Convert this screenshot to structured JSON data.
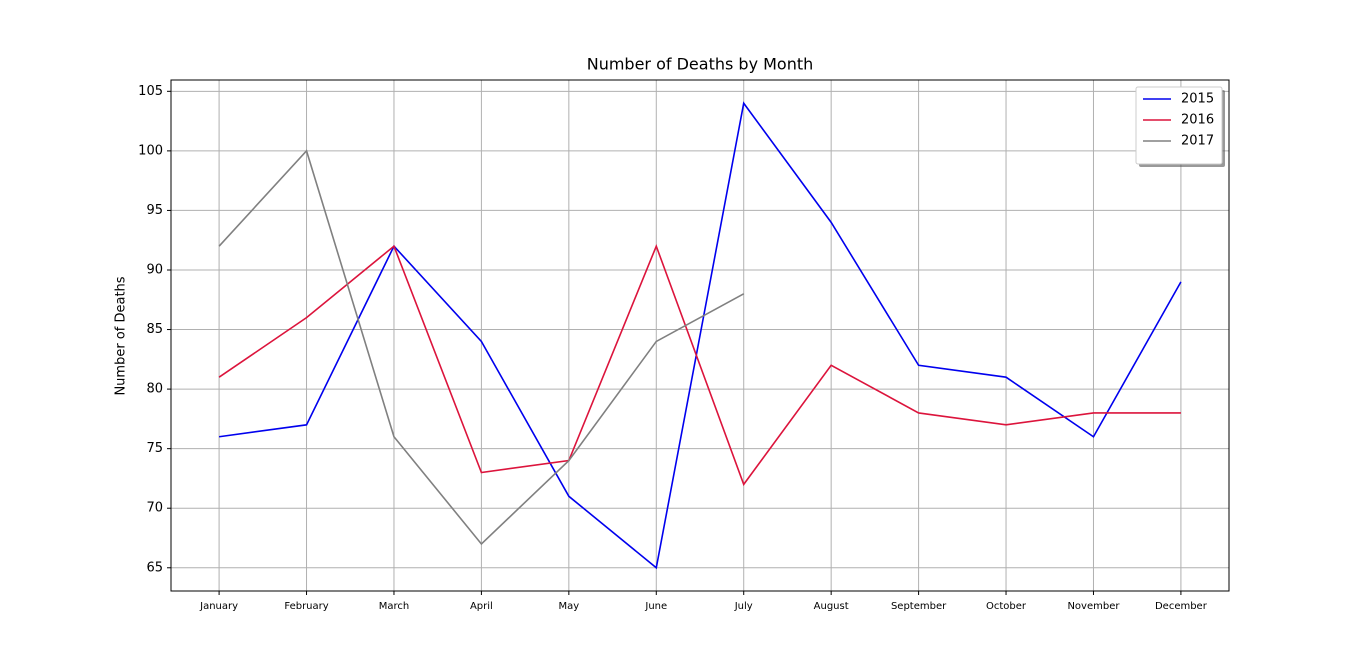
{
  "chart_data": {
    "type": "line",
    "title": "Number of Deaths by Month",
    "ylabel": "Number of Deaths",
    "categories": [
      "January",
      "February",
      "March",
      "April",
      "May",
      "June",
      "July",
      "August",
      "September",
      "October",
      "November",
      "December"
    ],
    "series": [
      {
        "name": "2015",
        "color": "#0000ee",
        "values": [
          76,
          77,
          92,
          84,
          71,
          65,
          104,
          94,
          82,
          81,
          76,
          89
        ]
      },
      {
        "name": "2016",
        "color": "#dc143c",
        "values": [
          81,
          86,
          92,
          73,
          74,
          92,
          72,
          82,
          78,
          77,
          78,
          78
        ]
      },
      {
        "name": "2017",
        "color": "#808080",
        "values": [
          92,
          100,
          76,
          67,
          74,
          84,
          88,
          null,
          null,
          null,
          null,
          null
        ]
      }
    ],
    "ylim": [
      63.05,
      105.95
    ],
    "yticks": [
      65,
      70,
      75,
      80,
      85,
      90,
      95,
      100,
      105
    ],
    "grid": true,
    "legend": "upper right"
  }
}
